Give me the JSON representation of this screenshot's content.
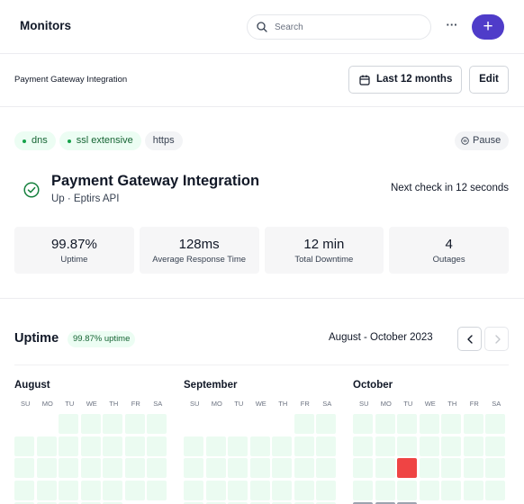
{
  "header": {
    "title": "Monitors",
    "search_placeholder": "Search",
    "more_label": "···",
    "add_label": "+"
  },
  "subheader": {
    "breadcrumb": "Payment Gateway Integration",
    "period_label": "Last 12 months",
    "edit_label": "Edit"
  },
  "tags": [
    {
      "label": "dns",
      "style": "green"
    },
    {
      "label": "ssl extensive",
      "style": "green"
    },
    {
      "label": "https",
      "style": "plain"
    }
  ],
  "pause_label": "Pause",
  "monitor": {
    "name": "Payment Gateway Integration",
    "subtitle": "Up · Eptirs API",
    "next_check": "Next check in 12 seconds"
  },
  "stats": [
    {
      "value": "99.87%",
      "label": "Uptime"
    },
    {
      "value": "128ms",
      "label": "Average Response Time"
    },
    {
      "value": "12 min",
      "label": "Total Downtime"
    },
    {
      "value": "4",
      "label": "Outages"
    }
  ],
  "uptime": {
    "title": "Uptime",
    "badge": "99.87% uptime",
    "range": "August - October 2023"
  },
  "weekdays": [
    "SU",
    "MO",
    "TU",
    "WE",
    "TH",
    "FR",
    "SA"
  ],
  "months": [
    {
      "name": "August",
      "start_weekday": 2,
      "days": 31,
      "down_days": [],
      "future_from": 0
    },
    {
      "name": "September",
      "start_weekday": 5,
      "days": 30,
      "down_days": [],
      "future_from": 0
    },
    {
      "name": "October",
      "start_weekday": 0,
      "days": 31,
      "down_days": [
        17
      ],
      "future_from": 29
    }
  ],
  "colors": {
    "accent": "#4f3cc9",
    "up": "#ebfbf1",
    "down": "#ef4444",
    "future": "#9ca3af"
  }
}
